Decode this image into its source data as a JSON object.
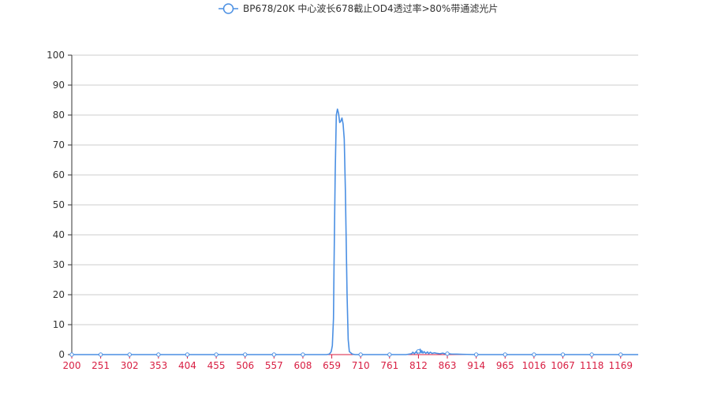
{
  "colors": {
    "series": "#4a8fe3",
    "x_axis": "#d81e42",
    "grid": "#cccccc",
    "text": "#333333"
  },
  "chart_data": {
    "type": "line",
    "title": "",
    "xlabel": "",
    "ylabel": "",
    "legend_position": "top-center",
    "grid": true,
    "xlim": [
      200,
      1200
    ],
    "ylim": [
      0,
      100
    ],
    "x_ticks": [
      "200",
      "251",
      "302",
      "353",
      "404",
      "455",
      "506",
      "557",
      "608",
      "659",
      "710",
      "761",
      "812",
      "863",
      "914",
      "965",
      "1016",
      "1067",
      "1118",
      "1169"
    ],
    "y_ticks": [
      "0",
      "10",
      "20",
      "30",
      "40",
      "50",
      "60",
      "70",
      "80",
      "90",
      "100"
    ],
    "series": [
      {
        "name": "BP678/20K 中心波长678截止OD4透过率>80%带通滤光片",
        "marker": "circle",
        "x": [
          200,
          251,
          302,
          353,
          404,
          455,
          506,
          557,
          608,
          640,
          650,
          655,
          658,
          660,
          662,
          663,
          665,
          667,
          669,
          671,
          672,
          673,
          675,
          677,
          679,
          681,
          683,
          686,
          688,
          690,
          695,
          700,
          710,
          761,
          790,
          800,
          802,
          805,
          808,
          810,
          812,
          814,
          815,
          817,
          818,
          820,
          822,
          825,
          828,
          830,
          833,
          836,
          840,
          845,
          850,
          855,
          860,
          863,
          870,
          880,
          890,
          914,
          965,
          1016,
          1067,
          1118,
          1169,
          1200
        ],
        "y": [
          0,
          0,
          0,
          0,
          0,
          0,
          0,
          0,
          0,
          0,
          0,
          0.2,
          1,
          3,
          12,
          30,
          60,
          80,
          82,
          80.5,
          79,
          77.5,
          78,
          79,
          77,
          72,
          55,
          20,
          5,
          1,
          0.2,
          0,
          0,
          0,
          0,
          0.3,
          0.8,
          0.3,
          1.0,
          0.4,
          1.1,
          0.5,
          1.8,
          0.6,
          1.3,
          0.5,
          1.0,
          0.4,
          0.9,
          0.3,
          0.8,
          0.4,
          0.6,
          0.4,
          0.3,
          0.5,
          0.2,
          0.3,
          0.2,
          0.15,
          0.1,
          0,
          0,
          0,
          0,
          0,
          0,
          0
        ]
      }
    ]
  }
}
